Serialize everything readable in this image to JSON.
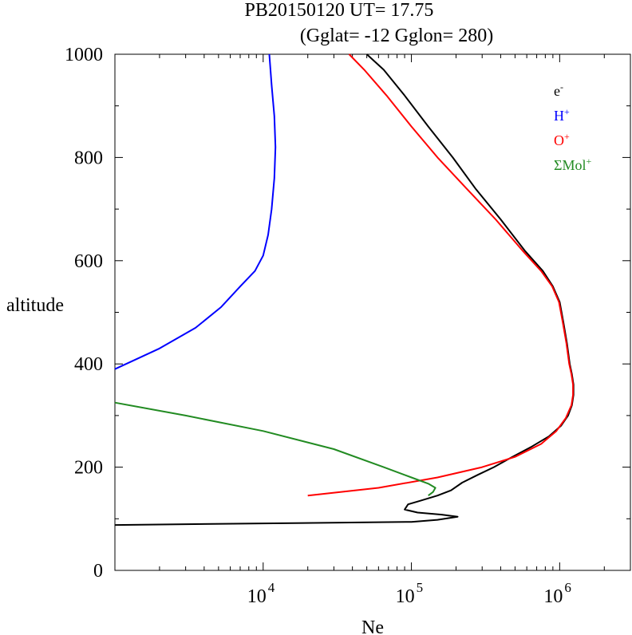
{
  "chart_data": {
    "type": "line",
    "title_line1": "PB20150120   UT=  17.75",
    "title_line2": "(Gglat= -12   Gglon=  280)",
    "xlabel": "Ne",
    "ylabel": "altitude",
    "x_scale": "log",
    "xlim": [
      1000,
      3000000
    ],
    "ylim": [
      0,
      1000
    ],
    "y_ticks": [
      "0",
      "200",
      "400",
      "600",
      "800",
      "1000"
    ],
    "x_ticks": [
      {
        "value": 10000,
        "base": "10",
        "exp": "4"
      },
      {
        "value": 100000,
        "base": "10",
        "exp": "5"
      },
      {
        "value": 1000000,
        "base": "10",
        "exp": "6"
      }
    ],
    "legend_position": "top-right",
    "series": [
      {
        "id": "e",
        "name_base": "e",
        "name_sup": "-",
        "color": "#000000",
        "points": [
          [
            1000,
            88
          ],
          [
            10000,
            91
          ],
          [
            100000,
            94
          ],
          [
            150000,
            98
          ],
          [
            205000,
            104
          ],
          [
            160000,
            108
          ],
          [
            110000,
            112
          ],
          [
            90000,
            118
          ],
          [
            95000,
            128
          ],
          [
            115000,
            135
          ],
          [
            150000,
            145
          ],
          [
            185000,
            155
          ],
          [
            220000,
            170
          ],
          [
            280000,
            185
          ],
          [
            360000,
            200
          ],
          [
            480000,
            220
          ],
          [
            650000,
            240
          ],
          [
            850000,
            260
          ],
          [
            1020000,
            280
          ],
          [
            1140000,
            300
          ],
          [
            1210000,
            320
          ],
          [
            1240000,
            340
          ],
          [
            1240000,
            360
          ],
          [
            1210000,
            380
          ],
          [
            1170000,
            400
          ],
          [
            1120000,
            440
          ],
          [
            1060000,
            480
          ],
          [
            1000000,
            520
          ],
          [
            900000,
            550
          ],
          [
            770000,
            580
          ],
          [
            580000,
            620
          ],
          [
            400000,
            680
          ],
          [
            270000,
            740
          ],
          [
            190000,
            800
          ],
          [
            130000,
            860
          ],
          [
            90000,
            920
          ],
          [
            65000,
            970
          ],
          [
            50000,
            1000
          ]
        ]
      },
      {
        "id": "h",
        "name_base": "H",
        "name_sup": "+",
        "color": "#0000ff",
        "points": [
          [
            1000,
            390
          ],
          [
            2000,
            430
          ],
          [
            3500,
            470
          ],
          [
            5200,
            510
          ],
          [
            7000,
            550
          ],
          [
            8800,
            580
          ],
          [
            10000,
            610
          ],
          [
            10800,
            650
          ],
          [
            11400,
            700
          ],
          [
            11900,
            760
          ],
          [
            12100,
            820
          ],
          [
            11900,
            880
          ],
          [
            11400,
            940
          ],
          [
            11000,
            1000
          ]
        ]
      },
      {
        "id": "o",
        "name_base": "O",
        "name_sup": "+",
        "color": "#ff0000",
        "points": [
          [
            20000,
            145
          ],
          [
            60000,
            160
          ],
          [
            150000,
            180
          ],
          [
            300000,
            200
          ],
          [
            500000,
            220
          ],
          [
            750000,
            245
          ],
          [
            950000,
            270
          ],
          [
            1100000,
            295
          ],
          [
            1200000,
            320
          ],
          [
            1230000,
            340
          ],
          [
            1230000,
            360
          ],
          [
            1200000,
            380
          ],
          [
            1160000,
            400
          ],
          [
            1110000,
            440
          ],
          [
            1050000,
            480
          ],
          [
            990000,
            520
          ],
          [
            890000,
            550
          ],
          [
            750000,
            580
          ],
          [
            560000,
            620
          ],
          [
            370000,
            680
          ],
          [
            235000,
            740
          ],
          [
            150000,
            800
          ],
          [
            100000,
            860
          ],
          [
            68000,
            920
          ],
          [
            48000,
            970
          ],
          [
            38000,
            1000
          ]
        ]
      },
      {
        "id": "mol",
        "name_base": "ΣMol",
        "name_sup": "+",
        "color": "#228b22",
        "points": [
          [
            1000,
            325
          ],
          [
            3000,
            300
          ],
          [
            10000,
            270
          ],
          [
            30000,
            235
          ],
          [
            65000,
            200
          ],
          [
            100000,
            180
          ],
          [
            130000,
            168
          ],
          [
            145000,
            160
          ],
          [
            140000,
            152
          ],
          [
            130000,
            145
          ]
        ]
      }
    ]
  }
}
